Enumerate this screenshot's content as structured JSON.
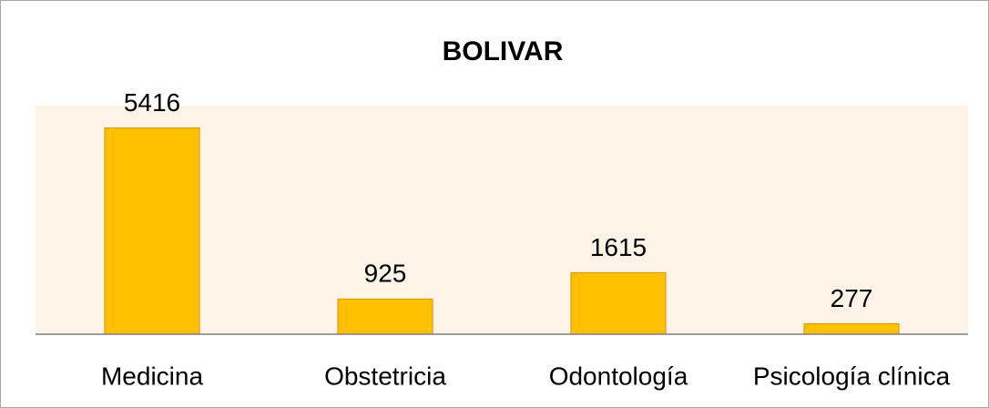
{
  "chart_data": {
    "type": "bar",
    "title": "BOLIVAR",
    "categories": [
      "Medicina",
      "Obstetricia",
      "Odontología",
      "Psicología clínica"
    ],
    "values": [
      5416,
      925,
      1615,
      277
    ],
    "color": "#ffc000",
    "plot_background": "#fef3e7",
    "ylim": [
      0,
      6000
    ]
  }
}
